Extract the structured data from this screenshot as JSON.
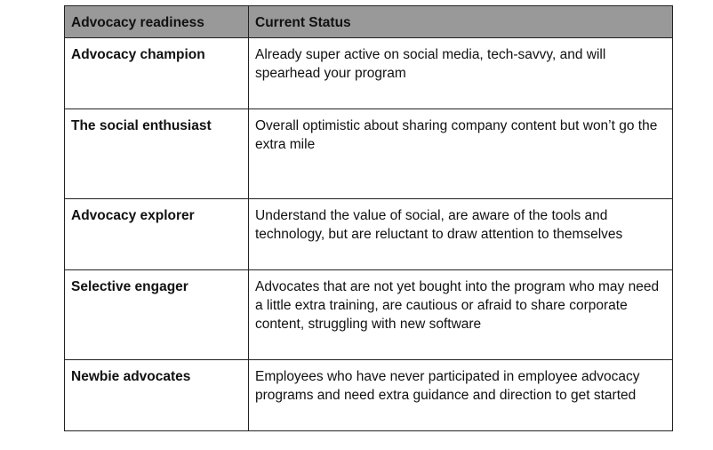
{
  "headers": [
    "Advocacy readiness",
    "Current Status"
  ],
  "rows": [
    {
      "type": "Advocacy champion",
      "status": "Already super active on social media, tech-savvy, and will spearhead your program"
    },
    {
      "type": "The social enthusiast",
      "status": "Overall optimistic about sharing company content but won’t go the extra mile"
    },
    {
      "type": "Advocacy explorer",
      "status": "Understand the value of social, are aware of the tools and technology, but are reluctant to draw attention to themselves"
    },
    {
      "type": "Selective engager",
      "status": "Advocates that are not yet bought into the program who may need a little extra training, are cautious or afraid to share corporate content, struggling with new software"
    },
    {
      "type": "Newbie advocates",
      "status": "Employees who have never participated in employee advocacy programs and need extra guidance and direction to get started"
    }
  ]
}
